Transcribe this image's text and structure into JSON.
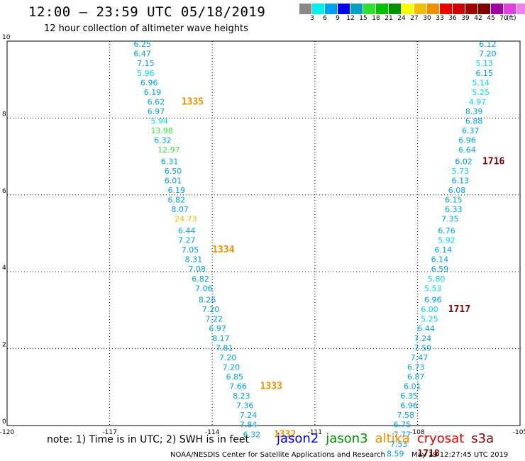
{
  "header": {
    "title": "12:00 – 23:59 UTC 05/18/2019",
    "subtitle": "12 hour collection of altimeter wave heights"
  },
  "legend": {
    "colors": [
      "#888888",
      "#00f0f0",
      "#00a0f0",
      "#0000f0",
      "#00a0c0",
      "#30e030",
      "#00c000",
      "#009000",
      "#ffff00",
      "#f0c000",
      "#f09000",
      "#f00000",
      "#d00000",
      "#a00000",
      "#800000",
      "#a000a0",
      "#e040e0",
      "#f080f0",
      "#000000"
    ],
    "labels": [
      "3",
      "6",
      "9",
      "12",
      "15",
      "18",
      "21",
      "24",
      "27",
      "30",
      "33",
      "36",
      "39",
      "42",
      "45",
      "70"
    ],
    "unit": "(ft)"
  },
  "chart_data": {
    "type": "scatter",
    "xlim": [
      -120,
      -105
    ],
    "ylim": [
      0,
      10
    ],
    "x_ticks": [
      "-120",
      "-117",
      "-114",
      "-111",
      "-108",
      "-105"
    ],
    "y_ticks": [
      "0",
      "2",
      "4",
      "6",
      "8",
      "10"
    ],
    "grid": true,
    "track_west": [
      {
        "lon": -116.3,
        "lat": 9.85,
        "v": "6.25",
        "c": "#00a0e0"
      },
      {
        "lon": -116.3,
        "lat": 9.6,
        "v": "6.47",
        "c": "#00a0e0"
      },
      {
        "lon": -116.2,
        "lat": 9.35,
        "v": "7.15",
        "c": "#00a0e0"
      },
      {
        "lon": -116.2,
        "lat": 9.1,
        "v": "5.96",
        "c": "#00d8f0"
      },
      {
        "lon": -116.1,
        "lat": 8.85,
        "v": "6.96",
        "c": "#00a0e0"
      },
      {
        "lon": -116.0,
        "lat": 8.6,
        "v": "6.19",
        "c": "#00a0e0"
      },
      {
        "lon": -115.9,
        "lat": 8.35,
        "v": "6.62",
        "c": "#00a0e0"
      },
      {
        "lon": -115.9,
        "lat": 8.1,
        "v": "6.97",
        "c": "#00a0e0"
      },
      {
        "lon": -115.8,
        "lat": 7.85,
        "v": "5.94",
        "c": "#00d8f0"
      },
      {
        "lon": -115.8,
        "lat": 7.6,
        "v": "13.98",
        "c": "#40e040"
      },
      {
        "lon": -115.7,
        "lat": 7.35,
        "v": "6.32",
        "c": "#00a0e0"
      },
      {
        "lon": -115.6,
        "lat": 7.1,
        "v": "12.97",
        "c": "#40e040"
      },
      {
        "lon": -115.5,
        "lat": 6.8,
        "v": "6.31",
        "c": "#00a0e0"
      },
      {
        "lon": -115.4,
        "lat": 6.55,
        "v": "6.50",
        "c": "#00a0e0"
      },
      {
        "lon": -115.4,
        "lat": 6.3,
        "v": "6.01",
        "c": "#00a0e0"
      },
      {
        "lon": -115.3,
        "lat": 6.05,
        "v": "6.19",
        "c": "#00a0e0"
      },
      {
        "lon": -115.3,
        "lat": 5.8,
        "v": "6.82",
        "c": "#00a0e0"
      },
      {
        "lon": -115.2,
        "lat": 5.55,
        "v": "8.07",
        "c": "#00a0e0"
      },
      {
        "lon": -115.1,
        "lat": 5.3,
        "v": "24.73",
        "c": "#f0c000"
      },
      {
        "lon": -115.0,
        "lat": 5.0,
        "v": "6.44",
        "c": "#00a0e0"
      },
      {
        "lon": -115.0,
        "lat": 4.75,
        "v": "7.27",
        "c": "#00a0e0"
      },
      {
        "lon": -114.9,
        "lat": 4.5,
        "v": "7.05",
        "c": "#00a0e0"
      },
      {
        "lon": -114.8,
        "lat": 4.25,
        "v": "8.31",
        "c": "#00a0e0"
      },
      {
        "lon": -114.7,
        "lat": 4.0,
        "v": "7.08",
        "c": "#00a0e0"
      },
      {
        "lon": -114.6,
        "lat": 3.75,
        "v": "6.82",
        "c": "#00a0e0"
      },
      {
        "lon": -114.5,
        "lat": 3.5,
        "v": "7.06",
        "c": "#00a0e0"
      },
      {
        "lon": -114.4,
        "lat": 3.2,
        "v": "8.26",
        "c": "#00a0e0"
      },
      {
        "lon": -114.3,
        "lat": 2.95,
        "v": "7.20",
        "c": "#00a0e0"
      },
      {
        "lon": -114.2,
        "lat": 2.7,
        "v": "7.22",
        "c": "#00a0e0"
      },
      {
        "lon": -114.1,
        "lat": 2.45,
        "v": "6.97",
        "c": "#00a0e0"
      },
      {
        "lon": -114.0,
        "lat": 2.2,
        "v": "8.17",
        "c": "#00a0e0"
      },
      {
        "lon": -113.9,
        "lat": 1.95,
        "v": "7.81",
        "c": "#00a0e0"
      },
      {
        "lon": -113.8,
        "lat": 1.7,
        "v": "7.20",
        "c": "#00a0e0"
      },
      {
        "lon": -113.7,
        "lat": 1.45,
        "v": "7.20",
        "c": "#00a0e0"
      },
      {
        "lon": -113.6,
        "lat": 1.2,
        "v": "6.85",
        "c": "#00a0e0"
      },
      {
        "lon": -113.5,
        "lat": 0.95,
        "v": "7.66",
        "c": "#00a0e0"
      },
      {
        "lon": -113.4,
        "lat": 0.7,
        "v": "8.23",
        "c": "#00a0e0"
      },
      {
        "lon": -113.3,
        "lat": 0.45,
        "v": "7.36",
        "c": "#00a0e0"
      },
      {
        "lon": -113.2,
        "lat": 0.2,
        "v": "7.24",
        "c": "#00a0e0"
      },
      {
        "lon": -113.2,
        "lat": -0.05,
        "v": "7.84",
        "c": "#00a0e0"
      },
      {
        "lon": -113.1,
        "lat": -0.3,
        "v": "6.32",
        "c": "#00a0e0"
      }
    ],
    "track_east": [
      {
        "lon": -106.2,
        "lat": 9.85,
        "v": "6.12",
        "c": "#00a0e0"
      },
      {
        "lon": -106.2,
        "lat": 9.6,
        "v": "7.20",
        "c": "#00a0e0"
      },
      {
        "lon": -106.3,
        "lat": 9.35,
        "v": "5.13",
        "c": "#00d8f0"
      },
      {
        "lon": -106.3,
        "lat": 9.1,
        "v": "6.15",
        "c": "#00a0e0"
      },
      {
        "lon": -106.4,
        "lat": 8.85,
        "v": "5.14",
        "c": "#00d8f0"
      },
      {
        "lon": -106.4,
        "lat": 8.6,
        "v": "5.25",
        "c": "#00d8f0"
      },
      {
        "lon": -106.5,
        "lat": 8.35,
        "v": "4.97",
        "c": "#00d8f0"
      },
      {
        "lon": -106.6,
        "lat": 8.1,
        "v": "8.39",
        "c": "#00a0e0"
      },
      {
        "lon": -106.6,
        "lat": 7.85,
        "v": "6.88",
        "c": "#00a0e0"
      },
      {
        "lon": -106.7,
        "lat": 7.6,
        "v": "6.37",
        "c": "#00a0e0"
      },
      {
        "lon": -106.8,
        "lat": 7.35,
        "v": "6.96",
        "c": "#00a0e0"
      },
      {
        "lon": -106.8,
        "lat": 7.1,
        "v": "6.64",
        "c": "#00a0e0"
      },
      {
        "lon": -106.9,
        "lat": 6.8,
        "v": "6.02",
        "c": "#00a0e0"
      },
      {
        "lon": -107.0,
        "lat": 6.55,
        "v": "5.73",
        "c": "#00d8f0"
      },
      {
        "lon": -107.0,
        "lat": 6.3,
        "v": "6.13",
        "c": "#00a0e0"
      },
      {
        "lon": -107.1,
        "lat": 6.05,
        "v": "6.08",
        "c": "#00a0e0"
      },
      {
        "lon": -107.2,
        "lat": 5.8,
        "v": "6.15",
        "c": "#00a0e0"
      },
      {
        "lon": -107.2,
        "lat": 5.55,
        "v": "6.33",
        "c": "#00a0e0"
      },
      {
        "lon": -107.3,
        "lat": 5.3,
        "v": "7.35",
        "c": "#00a0e0"
      },
      {
        "lon": -107.4,
        "lat": 5.0,
        "v": "6.76",
        "c": "#00a0e0"
      },
      {
        "lon": -107.4,
        "lat": 4.75,
        "v": "5.92",
        "c": "#00d8f0"
      },
      {
        "lon": -107.5,
        "lat": 4.5,
        "v": "6.14",
        "c": "#00a0e0"
      },
      {
        "lon": -107.6,
        "lat": 4.25,
        "v": "6.14",
        "c": "#00a0e0"
      },
      {
        "lon": -107.6,
        "lat": 4.0,
        "v": "6.59",
        "c": "#00a0e0"
      },
      {
        "lon": -107.7,
        "lat": 3.75,
        "v": "5.80",
        "c": "#00d8f0"
      },
      {
        "lon": -107.8,
        "lat": 3.5,
        "v": "5.53",
        "c": "#00d8f0"
      },
      {
        "lon": -107.8,
        "lat": 3.2,
        "v": "6.96",
        "c": "#00a0e0"
      },
      {
        "lon": -107.9,
        "lat": 2.95,
        "v": "6.00",
        "c": "#00d8f0"
      },
      {
        "lon": -107.9,
        "lat": 2.7,
        "v": "5.25",
        "c": "#00d8f0"
      },
      {
        "lon": -108.0,
        "lat": 2.45,
        "v": "6.44",
        "c": "#00a0e0"
      },
      {
        "lon": -108.1,
        "lat": 2.2,
        "v": "7.24",
        "c": "#00a0e0"
      },
      {
        "lon": -108.1,
        "lat": 1.95,
        "v": "7.59",
        "c": "#00a0e0"
      },
      {
        "lon": -108.2,
        "lat": 1.7,
        "v": "7.47",
        "c": "#00a0e0"
      },
      {
        "lon": -108.3,
        "lat": 1.45,
        "v": "6.73",
        "c": "#00a0e0"
      },
      {
        "lon": -108.3,
        "lat": 1.2,
        "v": "6.87",
        "c": "#00a0e0"
      },
      {
        "lon": -108.4,
        "lat": 0.95,
        "v": "6.01",
        "c": "#00a0e0"
      },
      {
        "lon": -108.5,
        "lat": 0.7,
        "v": "6.35",
        "c": "#00a0e0"
      },
      {
        "lon": -108.5,
        "lat": 0.45,
        "v": "6.96",
        "c": "#00a0e0"
      },
      {
        "lon": -108.6,
        "lat": 0.2,
        "v": "7.58",
        "c": "#00a0e0"
      },
      {
        "lon": -108.7,
        "lat": -0.05,
        "v": "6.75",
        "c": "#00a0e0"
      },
      {
        "lon": -108.7,
        "lat": -0.3,
        "v": "7.77",
        "c": "#00a0e0"
      },
      {
        "lon": -108.8,
        "lat": -0.55,
        "v": "7.53",
        "c": "#00a0e0"
      },
      {
        "lon": -108.9,
        "lat": -0.8,
        "v": "8.59",
        "c": "#00a0e0"
      }
    ],
    "time_labels": [
      {
        "lon": -114.9,
        "lat": 8.35,
        "t": "1335",
        "c": "#f09000"
      },
      {
        "lon": -114.0,
        "lat": 4.5,
        "t": "1334",
        "c": "#f09000"
      },
      {
        "lon": -112.6,
        "lat": 0.95,
        "t": "1333",
        "c": "#f09000"
      },
      {
        "lon": -112.2,
        "lat": -0.3,
        "t": "1332",
        "c": "#f09000"
      },
      {
        "lon": -106.1,
        "lat": 6.8,
        "t": "1716",
        "c": "#800000"
      },
      {
        "lon": -107.1,
        "lat": 2.95,
        "t": "1717",
        "c": "#800000"
      },
      {
        "lon": -108.0,
        "lat": -0.8,
        "t": "1718",
        "c": "#800000"
      }
    ]
  },
  "note": "note:  1) Time is in UTC;  2) SWH is in feet",
  "satellites": [
    {
      "name": "jason2",
      "color": "#0000e0"
    },
    {
      "name": "jason3",
      "color": "#009000"
    },
    {
      "name": "altika",
      "color": "#f09000"
    },
    {
      "name": "cryosat",
      "color": "#e00000"
    },
    {
      "name": "s3a",
      "color": "#800000"
    }
  ],
  "footer": "NOAA/NESDIS Center for Satellite Applications and Research",
  "stamp": "May 19 12:27:45 UTC 2019"
}
